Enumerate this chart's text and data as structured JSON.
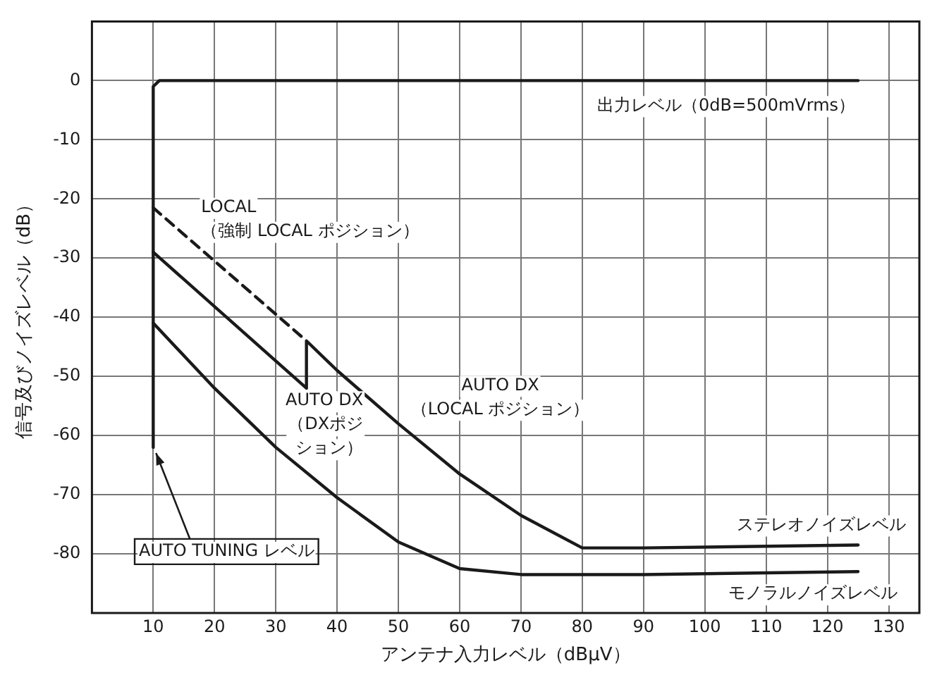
{
  "chart_data": {
    "type": "line",
    "xlabel": "アンテナ入力レベル（dBμV）",
    "ylabel": "信号及びノイズレベル（dB）",
    "xlim": [
      0,
      135
    ],
    "xticks": [
      10,
      20,
      30,
      40,
      50,
      60,
      70,
      80,
      90,
      100,
      110,
      120,
      130
    ],
    "ylim": [
      -90,
      10
    ],
    "yticks": [
      -80,
      -70,
      -60,
      -50,
      -40,
      -30,
      -20,
      -10,
      0
    ],
    "grid": true,
    "legend": false,
    "marker": "none",
    "series": [
      {
        "name": "出力レベル（0dB=500mVrms）",
        "color": "#1a1a1a",
        "x": [
          10,
          10,
          11,
          125
        ],
        "values": [
          -62,
          -1,
          0,
          0
        ]
      },
      {
        "name": "LOCAL\n（強制 LOCAL ポジション）",
        "color": "#1a1a1a",
        "line_style": "dashed",
        "x": [
          10,
          35
        ],
        "values": [
          -21.5,
          -44
        ]
      },
      {
        "name": "ステレオノイズレベル",
        "color": "#1a1a1a",
        "x": [
          10,
          35,
          35,
          40,
          50,
          60,
          70,
          80,
          90,
          125
        ],
        "values": [
          -29,
          -52,
          -44,
          -49,
          -58,
          -66.5,
          -73.5,
          -79,
          -79,
          -78.5
        ]
      },
      {
        "name": "モノラルノイズレベル",
        "color": "#1a1a1a",
        "x": [
          10,
          20,
          30,
          40,
          50,
          60,
          70,
          90,
          125
        ],
        "values": [
          -41,
          -52,
          -62,
          -70.5,
          -78,
          -82.5,
          -83.5,
          -83.5,
          -83
        ]
      }
    ],
    "annotations": [
      {
        "text": "AUTO DX\n（DXポジション）",
        "x": 30,
        "y": -47.5
      },
      {
        "text": "AUTO DX\n（LOCAL ポジション）",
        "x": 45,
        "y": -53
      },
      {
        "text": "AUTO TUNING レベル",
        "x": 10,
        "y": -62
      }
    ]
  }
}
